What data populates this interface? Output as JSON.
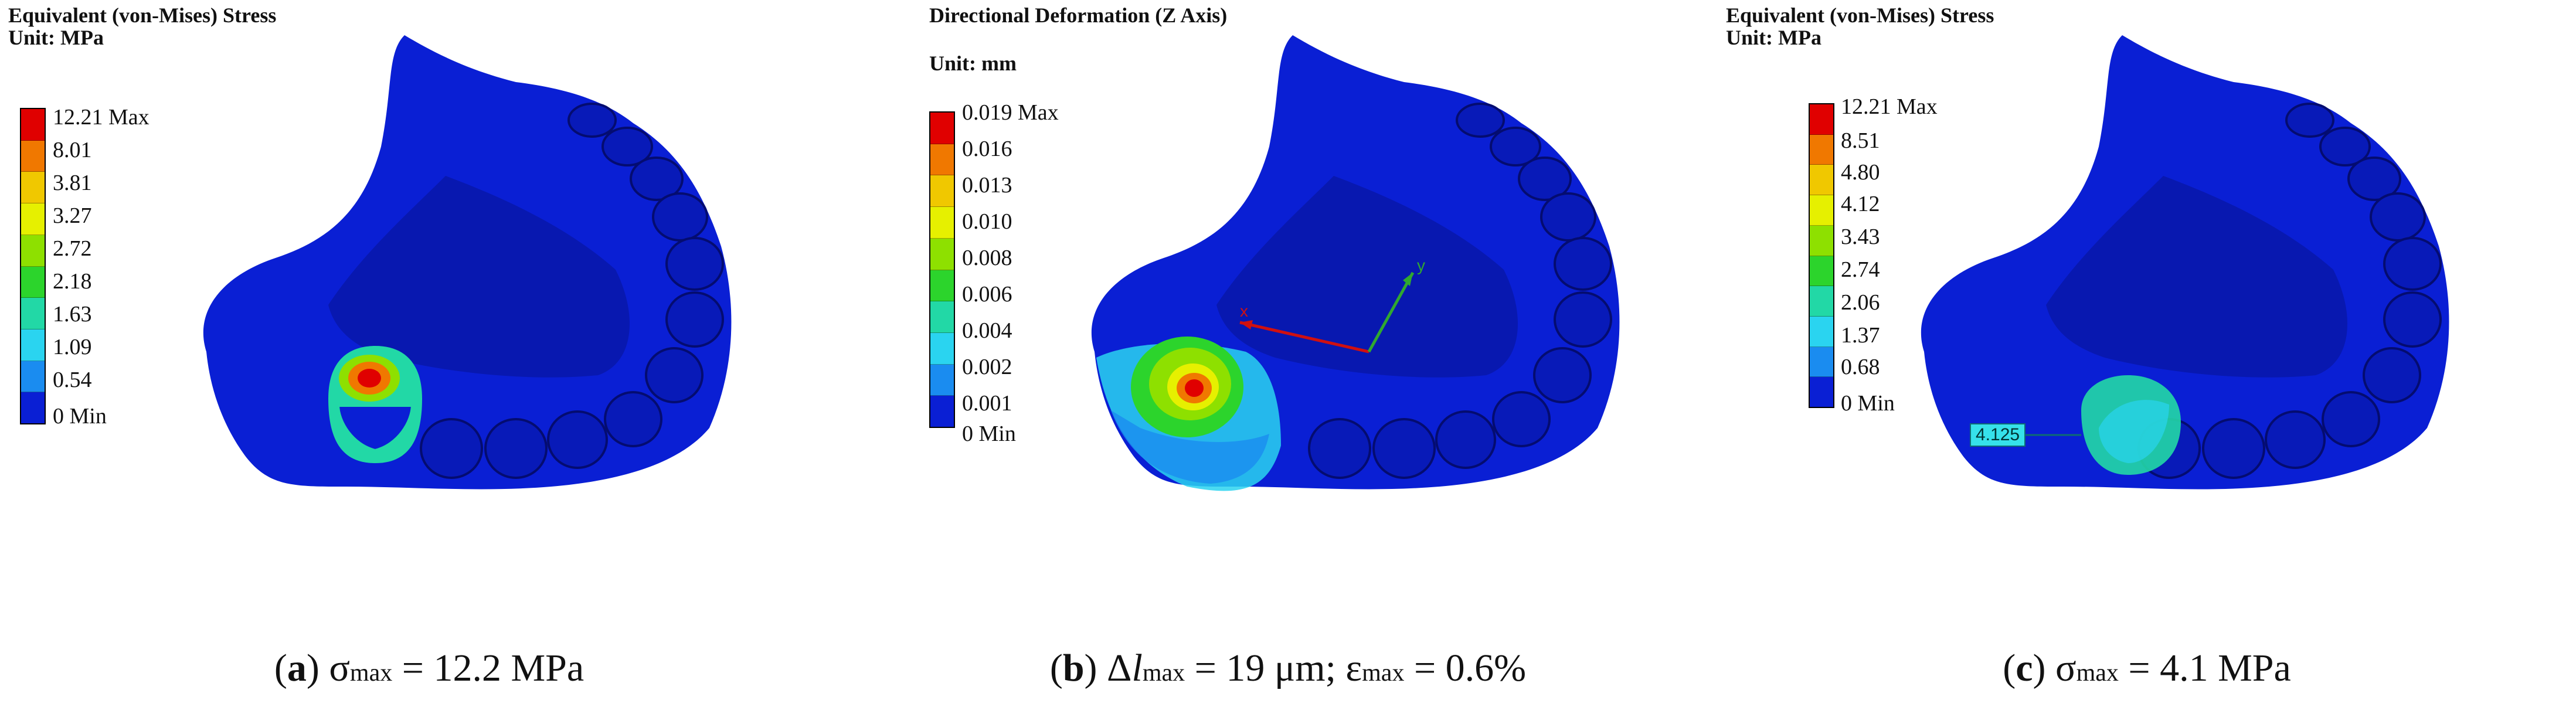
{
  "colors": {
    "model_blue": "#0a1fd4",
    "model_shadow": "#050f8a",
    "scale": [
      "#e00000",
      "#f07800",
      "#f0c800",
      "#e6f000",
      "#8ee000",
      "#2cd42c",
      "#22d8a6",
      "#2ad4f0",
      "#1a8cf0",
      "#0a1fd4"
    ]
  },
  "panels": [
    {
      "id": "a",
      "legend_title": "Equivalent (von-Mises) Stress",
      "legend_unit": "Unit: MPa",
      "legend_labels": [
        "12.21 Max",
        "8.01",
        "3.81",
        "3.27",
        "2.72",
        "2.18",
        "1.63",
        "1.09",
        "0.54",
        "0 Min"
      ],
      "caption": {
        "label": "a",
        "symbol": "σ",
        "sub": "max",
        "text": " = 12.2 MPa"
      }
    },
    {
      "id": "b",
      "legend_title": "Directional Deformation (Z Axis)",
      "legend_unit": "Unit: mm",
      "legend_labels": [
        "0.019 Max",
        "0.016",
        "0.013",
        "0.010",
        "0.008",
        "0.006",
        "0.004",
        "0.002",
        "0.001",
        "0 Min"
      ],
      "axis_labels": {
        "x": "x",
        "y": "y"
      },
      "caption": {
        "label": "b",
        "part1_symbol": "Δ",
        "part1_ital": "l",
        "part1_sub": "max",
        "part1_text": " = 19 μm; ",
        "part2_symbol": "ε",
        "part2_sub": "max",
        "part2_text": " = 0.6%"
      }
    },
    {
      "id": "c",
      "legend_title": "Equivalent (von-Mises) Stress",
      "legend_unit": "Unit: MPa",
      "legend_labels": [
        "12.21 Max",
        "8.51",
        "4.80",
        "4.12",
        "3.43",
        "2.74",
        "2.06",
        "1.37",
        "0.68",
        "0 Min"
      ],
      "probe_value": "4.125",
      "caption": {
        "label": "c",
        "symbol": "σ",
        "sub": "max",
        "text": " = 4.1 MPa"
      }
    }
  ]
}
